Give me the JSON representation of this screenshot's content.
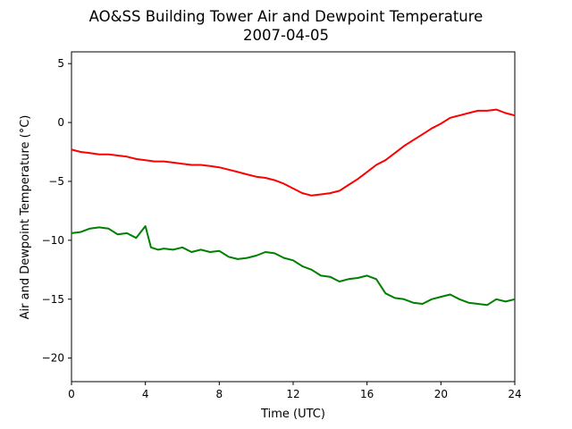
{
  "chart_data": {
    "type": "line",
    "title": "AO&SS Building Tower Air and Dewpoint Temperature",
    "subtitle": "2007-04-05",
    "xlabel": "Time (UTC)",
    "ylabel": "Air and Dewpoint Temperature (°C)",
    "xlim": [
      0,
      24
    ],
    "ylim": [
      -22,
      6
    ],
    "xticks": [
      0,
      4,
      8,
      12,
      16,
      20,
      24
    ],
    "yticks": [
      -20,
      -15,
      -10,
      -5,
      0,
      5
    ],
    "grid": false,
    "legend": "none",
    "series": [
      {
        "color": "#ff0000",
        "x": [
          0,
          0.5,
          1,
          1.5,
          2,
          2.5,
          3,
          3.5,
          4,
          4.5,
          5,
          5.5,
          6,
          6.5,
          7,
          7.5,
          8,
          8.5,
          9,
          9.5,
          10,
          10.5,
          11,
          11.5,
          12,
          12.5,
          13,
          13.5,
          14,
          14.5,
          15,
          15.5,
          16,
          16.5,
          17,
          17.5,
          18,
          18.5,
          19,
          19.5,
          20,
          20.5,
          21,
          21.5,
          22,
          22.5,
          23,
          23.5,
          24
        ],
        "y": [
          -2.3,
          -2.5,
          -2.6,
          -2.7,
          -2.7,
          -2.8,
          -2.9,
          -3.1,
          -3.2,
          -3.3,
          -3.3,
          -3.4,
          -3.5,
          -3.6,
          -3.6,
          -3.7,
          -3.8,
          -4.0,
          -4.2,
          -4.4,
          -4.6,
          -4.7,
          -4.9,
          -5.2,
          -5.6,
          -6.0,
          -6.2,
          -6.1,
          -6.0,
          -5.8,
          -5.3,
          -4.8,
          -4.2,
          -3.6,
          -3.2,
          -2.6,
          -2.0,
          -1.5,
          -1.0,
          -0.5,
          -0.1,
          0.4,
          0.6,
          0.8,
          1.0,
          1.0,
          1.1,
          0.8,
          0.6
        ]
      },
      {
        "color": "#008000",
        "x": [
          0,
          0.5,
          1,
          1.5,
          2,
          2.5,
          3,
          3.5,
          4,
          4.3,
          4.7,
          5,
          5.5,
          6,
          6.5,
          7,
          7.5,
          8,
          8.5,
          9,
          9.5,
          10,
          10.5,
          11,
          11.5,
          12,
          12.5,
          13,
          13.5,
          14,
          14.5,
          15,
          15.5,
          16,
          16.5,
          17,
          17.5,
          18,
          18.5,
          19,
          19.5,
          20,
          20.5,
          21,
          21.5,
          22,
          22.5,
          23,
          23.5,
          24
        ],
        "y": [
          -9.4,
          -9.3,
          -9.0,
          -8.9,
          -9.0,
          -9.5,
          -9.4,
          -9.8,
          -8.8,
          -10.6,
          -10.8,
          -10.7,
          -10.8,
          -10.6,
          -11.0,
          -10.8,
          -11.0,
          -10.9,
          -11.4,
          -11.6,
          -11.5,
          -11.3,
          -11.0,
          -11.1,
          -11.5,
          -11.7,
          -12.2,
          -12.5,
          -13.0,
          -13.1,
          -13.5,
          -13.3,
          -13.2,
          -13.0,
          -13.3,
          -14.5,
          -14.9,
          -15.0,
          -15.3,
          -15.4,
          -15.0,
          -14.8,
          -14.6,
          -15.0,
          -15.3,
          -15.4,
          -15.5,
          -15.0,
          -15.2,
          -15.0
        ]
      }
    ]
  }
}
